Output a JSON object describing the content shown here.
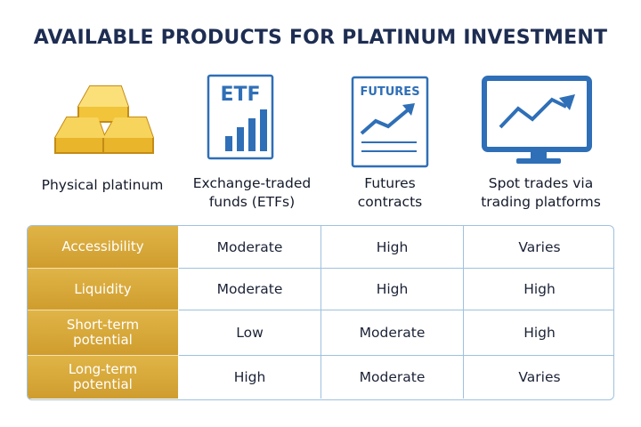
{
  "title": "AVAILABLE PRODUCTS FOR PLATINUM INVESTMENT",
  "products": [
    {
      "label": "Physical platinum"
    },
    {
      "label": "Exchange-traded funds (ETFs)",
      "icon_text": "ETF"
    },
    {
      "label": "Futures contracts",
      "icon_text": "FUTURES"
    },
    {
      "label": "Spot trades via trading platforms"
    }
  ],
  "table": {
    "rows": [
      {
        "label": "Accessibility",
        "cells": [
          "Moderate",
          "High",
          "Varies"
        ]
      },
      {
        "label": "Liquidity",
        "cells": [
          "Moderate",
          "High",
          "High"
        ]
      },
      {
        "label": "Short-term potential",
        "cells": [
          "Low",
          "Moderate",
          "High"
        ]
      },
      {
        "label": "Long-term potential",
        "cells": [
          "High",
          "Moderate",
          "Varies"
        ]
      }
    ]
  }
}
